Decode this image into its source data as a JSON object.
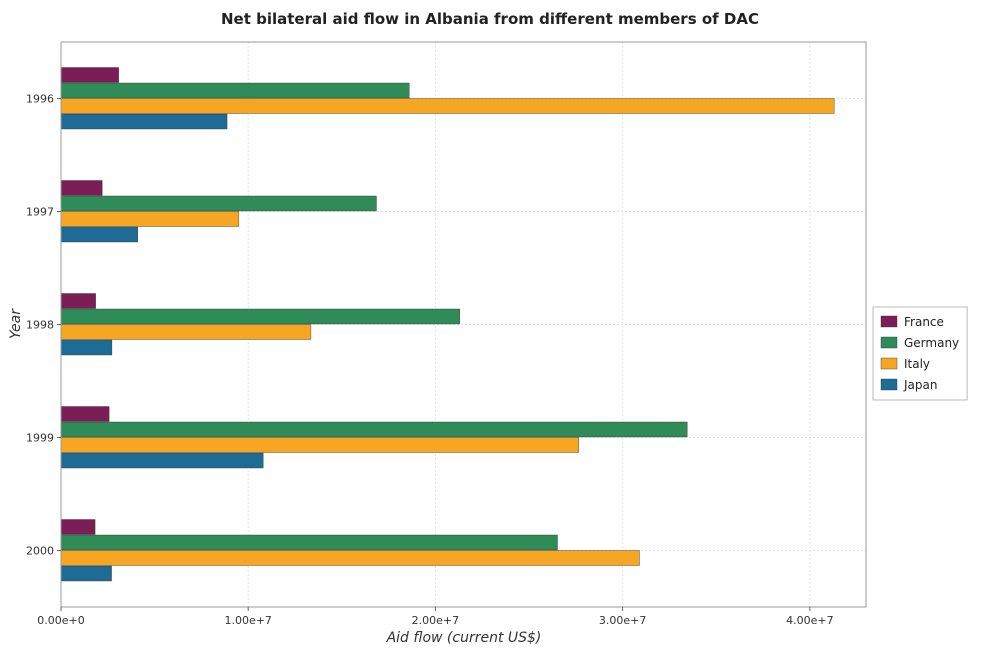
{
  "chart_data": {
    "type": "bar",
    "orientation": "horizontal",
    "title": "Net bilateral aid flow in Albania from different members of DAC",
    "xlabel": "Aid flow (current US$)",
    "ylabel": "Year",
    "categories": [
      "1996",
      "1997",
      "1998",
      "1999",
      "2000"
    ],
    "x_ticks": [
      "0.00e+0",
      "1.00e+7",
      "2.00e+7",
      "3.00e+7",
      "4.00e+7"
    ],
    "xlim": [
      0,
      43000000
    ],
    "grid": true,
    "legend_position": "right",
    "series": [
      {
        "name": "France",
        "color": "#7b1e57",
        "values": [
          3080000,
          2200000,
          1850000,
          2570000,
          1820000
        ]
      },
      {
        "name": "Germany",
        "color": "#2f8b57",
        "values": [
          18600000,
          16850000,
          21300000,
          33450000,
          26520000
        ]
      },
      {
        "name": "Italy",
        "color": "#f5a623",
        "values": [
          41300000,
          9500000,
          13350000,
          27650000,
          30900000
        ]
      },
      {
        "name": "Japan",
        "color": "#1e6c96",
        "values": [
          8870000,
          4100000,
          2720000,
          10800000,
          2700000
        ]
      }
    ]
  }
}
